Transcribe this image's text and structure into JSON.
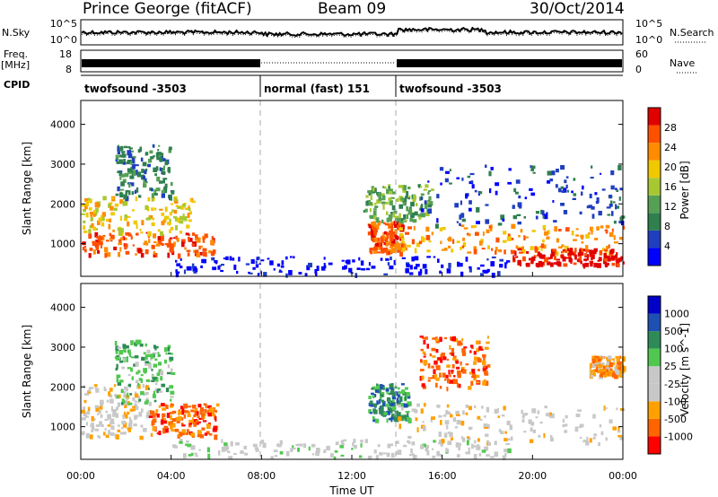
{
  "header": {
    "station": "Prince George (fitACF)",
    "beam": "Beam 09",
    "date": "30/Oct/2014"
  },
  "top_panels": {
    "nsky_label": "N.Sky",
    "nsearch_label": "N.Search",
    "freq_label": "Freq.",
    "freq_unit": "[MHz]",
    "nave_label": "Nave",
    "cpid_label": "CPID",
    "noise_ticks_left": [
      "10^5",
      "10^0"
    ],
    "noise_ticks_right": [
      "10^5",
      "10^0"
    ],
    "freq_ticks": [
      "18",
      "8"
    ],
    "nave_ticks": [
      "60",
      "0"
    ]
  },
  "cpid_segments": [
    {
      "label": "twofsound -3503",
      "start_h": 0,
      "end_h": 8
    },
    {
      "label": "normal (fast) 151",
      "start_h": 8,
      "end_h": 14
    },
    {
      "label": "twofsound -3503",
      "start_h": 14,
      "end_h": 24
    }
  ],
  "colors": {
    "power_scale": [
      "#0000ff",
      "#1f3fbf",
      "#2f7f4f",
      "#55a055",
      "#a8c832",
      "#f0c800",
      "#ff8c00",
      "#ff5000",
      "#e00000"
    ],
    "velocity_scale": [
      "#ff0000",
      "#ff6400",
      "#ffa000",
      "#c8c8c8",
      "#c8c8c8",
      "#50c850",
      "#2e8b57",
      "#1e50b4",
      "#0000c8"
    ],
    "ground_scatter": "#c8c8c8"
  },
  "chart_data": [
    {
      "type": "heatmap",
      "name": "power",
      "ylabel": "Slant Range [km]",
      "colorbar_label": "Power [dB]",
      "colorbar_ticks": [
        "28",
        "24",
        "20",
        "16",
        "12",
        "8",
        "4"
      ],
      "x_ticks": [
        "00:00",
        "04:00",
        "08:00",
        "12:00",
        "16:00",
        "20:00",
        "00:00"
      ],
      "y_ticks": [
        "1000",
        "2000",
        "3000",
        "4000"
      ],
      "xlim_h": [
        0,
        24
      ],
      "ylim_km": [
        180,
        4600
      ],
      "regions": [
        {
          "t0": 0.0,
          "t1": 6.0,
          "r0": 750,
          "r1": 1300,
          "level": 7
        },
        {
          "t0": 0.0,
          "t1": 5.0,
          "r0": 1300,
          "r1": 2200,
          "level": 5
        },
        {
          "t0": 1.5,
          "t1": 4.0,
          "r0": 2200,
          "r1": 3500,
          "level": 2
        },
        {
          "t0": 12.7,
          "t1": 14.2,
          "r0": 800,
          "r1": 1600,
          "level": 7
        },
        {
          "t0": 12.5,
          "t1": 15.5,
          "r0": 1600,
          "r1": 2500,
          "level": 3
        },
        {
          "t0": 14.0,
          "t1": 24.0,
          "r0": 800,
          "r1": 1500,
          "level": 6
        },
        {
          "t0": 19.0,
          "t1": 24.0,
          "r0": 500,
          "r1": 900,
          "level": 8
        },
        {
          "t0": 15.0,
          "t1": 24.0,
          "r0": 1500,
          "r1": 3000,
          "level": 1
        },
        {
          "t0": 4.0,
          "t1": 19.0,
          "r0": 250,
          "r1": 700,
          "level": 0
        }
      ]
    },
    {
      "type": "heatmap",
      "name": "velocity",
      "ylabel": "Slant Range [km]",
      "xlabel": "Time UT",
      "colorbar_label": "Velocity [m s^-1]",
      "colorbar_ticks": [
        "1000",
        "500",
        "100",
        "25",
        "-25",
        "-100",
        "-500",
        "-1000"
      ],
      "x_ticks": [
        "00:00",
        "04:00",
        "08:00",
        "12:00",
        "16:00",
        "20:00",
        "00:00"
      ],
      "y_ticks": [
        "1000",
        "2000",
        "3000",
        "4000"
      ],
      "xlim_h": [
        0,
        24
      ],
      "ylim_km": [
        180,
        4600
      ],
      "regions": [
        {
          "t0": 0.0,
          "t1": 3.0,
          "r0": 750,
          "r1": 2100,
          "level": 3
        },
        {
          "t0": 3.0,
          "t1": 6.0,
          "r0": 800,
          "r1": 1600,
          "level": 1
        },
        {
          "t0": 1.5,
          "t1": 4.0,
          "r0": 1600,
          "r1": 3200,
          "level": 5
        },
        {
          "t0": 12.7,
          "t1": 14.5,
          "r0": 1200,
          "r1": 2100,
          "level": 6
        },
        {
          "t0": 14.0,
          "t1": 24.0,
          "r0": 600,
          "r1": 1600,
          "level": 3
        },
        {
          "t0": 15.0,
          "t1": 18.0,
          "r0": 2000,
          "r1": 3300,
          "level": 1
        },
        {
          "t0": 22.5,
          "t1": 24.0,
          "r0": 2300,
          "r1": 2800,
          "level": 2
        },
        {
          "t0": 4.0,
          "t1": 19.0,
          "r0": 250,
          "r1": 700,
          "level": 4
        }
      ]
    }
  ]
}
